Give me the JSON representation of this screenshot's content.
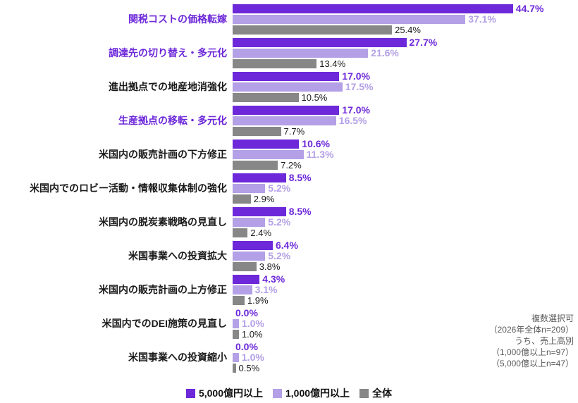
{
  "chart_data": {
    "type": "bar",
    "orientation": "horizontal",
    "title": "",
    "value_suffix": "%",
    "xlim": [
      0,
      50
    ],
    "grid": false,
    "legend_position": "bottom",
    "categories": [
      "関税コストの価格転嫁",
      "調達先の切り替え・多元化",
      "進出拠点での地産地消強化",
      "生産拠点の移転・多元化",
      "米国内の販売計画の下方修正",
      "米国内でのロビー活動・情報収集体制の強化",
      "米国内の脱炭素戦略の見直し",
      "米国事業への投資拡大",
      "米国内の販売計画の上方修正",
      "米国内でのDEI施策の見直し",
      "米国事業への投資縮小"
    ],
    "highlighted_categories": [
      true,
      true,
      false,
      true,
      false,
      false,
      false,
      false,
      false,
      false,
      false
    ],
    "series": [
      {
        "name": "5,000億円以上",
        "color": "#6d28d9",
        "label_color": "#6d28d9",
        "values": [
          44.7,
          27.7,
          17.0,
          17.0,
          10.6,
          8.5,
          8.5,
          6.4,
          4.3,
          0.0,
          0.0
        ]
      },
      {
        "name": "1,000億円以上",
        "color": "#b3a0e6",
        "label_color": "#b3a0e6",
        "values": [
          37.1,
          21.6,
          17.5,
          16.5,
          11.3,
          5.2,
          5.2,
          5.2,
          3.1,
          1.0,
          1.0
        ]
      },
      {
        "name": "全体",
        "color": "#878787",
        "label_color": "#1a1a1a",
        "values": [
          25.4,
          13.4,
          10.5,
          7.7,
          7.2,
          2.9,
          2.4,
          3.8,
          1.9,
          1.0,
          0.5
        ]
      }
    ]
  },
  "annotation": {
    "line1": "複数選択可",
    "line2": "（2026年全体n=209）",
    "line3": "うち、売上高別",
    "line4": "（1,000億以上n=97）",
    "line5": "（5,000億以上n=47）"
  },
  "colors": {
    "highlight_text": "#6d28d9",
    "category_text": "#1a1a1a",
    "annotation_text": "#595959"
  }
}
